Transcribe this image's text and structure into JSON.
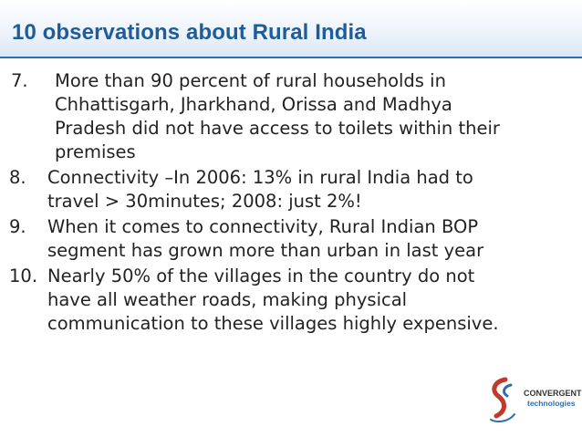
{
  "title": "10 observations about Rural India",
  "items": [
    {
      "number": "7.",
      "lines": [
        "More than 90 percent of rural households in",
        "Chhattisgarh, Jharkhand, Orissa and Madhya",
        "Pradesh did not have access to toilets within their",
        "premises"
      ]
    },
    {
      "number": "8.",
      "lines": [
        "Connectivity –In 2006: 13% in rural India had to",
        "travel > 30minutes; 2008: just 2%!"
      ]
    },
    {
      "number": "9.",
      "lines": [
        "When it comes to connectivity, Rural Indian BOP",
        "segment has grown more than urban in last year"
      ]
    },
    {
      "number": "10.",
      "lines": [
        "Nearly 50% of the villages in the country do not",
        "have all weather roads, making physical",
        "communication to these villages highly expensive."
      ]
    }
  ],
  "logo": {
    "line1": "CONVERGENT",
    "line2": "technologies",
    "colors": {
      "red": "#c0392b",
      "blue": "#2e6db4"
    }
  },
  "colors": {
    "title": "#1f5c99",
    "rule": "#2e6db4",
    "text": "#222222"
  }
}
